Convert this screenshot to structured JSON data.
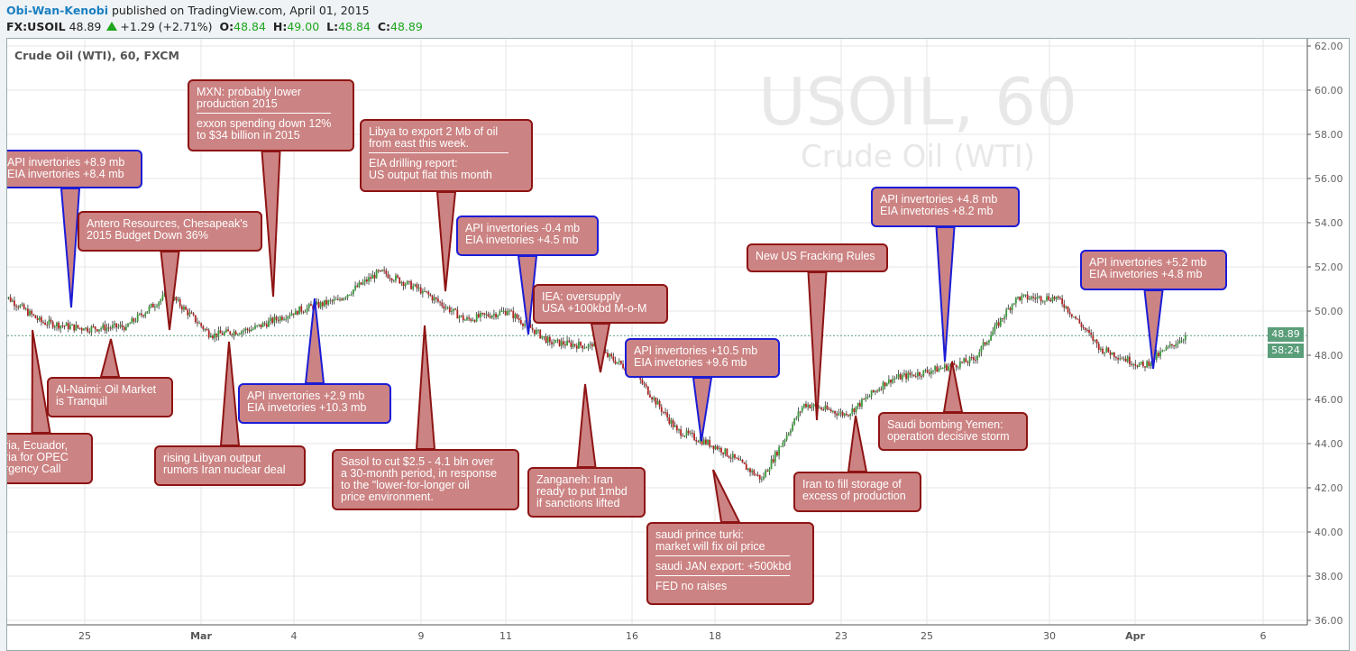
{
  "header": {
    "author": "Obi-Wan-Kenobi",
    "published": "published on TradingView.com, April 01, 2015",
    "symbol": "FX:USOIL",
    "last": "48.89",
    "change": "+1.29 (+2.71%)",
    "o_label": "O:",
    "o": "48.84",
    "h_label": "H:",
    "h": "49.00",
    "l_label": "L:",
    "l": "48.84",
    "c_label": "C:",
    "c": "48.89"
  },
  "chart_data": {
    "type": "candlestick",
    "title": "Crude Oil (WTI), 60, FXCM",
    "watermark": {
      "symbol": "USOIL, 60",
      "name": "Crude Oil (WTI)"
    },
    "ylim": [
      36,
      62
    ],
    "yticks": [
      "36.00",
      "38.00",
      "40.00",
      "42.00",
      "44.00",
      "46.00",
      "48.00",
      "50.00",
      "52.00",
      "54.00",
      "56.00",
      "58.00",
      "60.00",
      "62.00"
    ],
    "xticks": [
      "25",
      "Mar",
      "4",
      "9",
      "11",
      "16",
      "18",
      "23",
      "25",
      "30",
      "Apr",
      "6"
    ],
    "trading_days": [
      "2015-02-23",
      "2015-02-24",
      "2015-02-25",
      "2015-02-26",
      "2015-02-27",
      "2015-03-02",
      "2015-03-03",
      "2015-03-04",
      "2015-03-05",
      "2015-03-06",
      "2015-03-09",
      "2015-03-10",
      "2015-03-11",
      "2015-03-12",
      "2015-03-13",
      "2015-03-16",
      "2015-03-17",
      "2015-03-18",
      "2015-03-19",
      "2015-03-20",
      "2015-03-23",
      "2015-03-24",
      "2015-03-25",
      "2015-03-26",
      "2015-03-27",
      "2015-03-30",
      "2015-03-31",
      "2015-04-01"
    ],
    "daily_close": [
      49.5,
      49.2,
      49.3,
      50.8,
      48.9,
      49.2,
      50.0,
      50.5,
      51.8,
      50.9,
      49.6,
      50.0,
      48.6,
      48.4,
      47.2,
      44.6,
      43.8,
      42.4,
      45.8,
      45.3,
      46.9,
      47.3,
      47.8,
      50.6,
      50.6,
      48.3,
      47.5,
      48.89
    ],
    "open_first": 50.9,
    "last_price": "48.89",
    "countdown": "58:24",
    "colors": {
      "up": "#3a9a3a",
      "down": "#b22222",
      "last_price_tag": "#5a9e7a"
    }
  },
  "callouts": [
    {
      "text": "API invertories +8.9 mb\nEIA invertories +8.4 mb",
      "color": "blue"
    },
    {
      "text": "MXN: probably lower\nproduction 2015",
      "text2": "exxon spending down 12%\nto $34 billion in 2015",
      "color": "red"
    },
    {
      "text": "Antero Resources, Chesapeak's\n2015 Budget Down 36%",
      "color": "red"
    },
    {
      "text": "Libya to export 2 Mb of oil\nfrom east this week.",
      "text2": "EIA drilling report:\nUS output flat this month",
      "color": "red"
    },
    {
      "text": "API invertories -0.4 mb\nEIA invetories +4.5 mb",
      "color": "blue"
    },
    {
      "text": "IEA: oversupply\nUSA +100kbd M-o-M",
      "color": "red"
    },
    {
      "text": "New US Fracking Rules",
      "color": "red"
    },
    {
      "text": "API invertories +4.8 mb\nEIA invetories +8.2 mb",
      "color": "blue"
    },
    {
      "text": "API invertories +5.2 mb\nEIA invetories +4.8 mb",
      "color": "blue"
    },
    {
      "text": "Al-Naimi: Oil Market\nis Tranquil",
      "color": "red"
    },
    {
      "text": "eria, Ecuador,\neria for OPEC\nergency Call",
      "color": "red"
    },
    {
      "text": "rising Libyan output\nrumors Iran nuclear deal",
      "color": "red"
    },
    {
      "text": "API invertories +2.9 mb\nEIA invetories +10.3 mb",
      "color": "blue"
    },
    {
      "text": "Sasol to cut $2.5 - 4.1 bln over\na 30-month period, in response\nto the \"lower-for-longer oil\nprice environment.",
      "color": "red"
    },
    {
      "text": "Zanganeh: Iran\nready to put 1mbd\nif sanctions lifted",
      "color": "red"
    },
    {
      "text": "API invertories +10.5 mb\nEIA invetories +9.6 mb",
      "color": "blue"
    },
    {
      "text": "saudi prince turki:\nmarket will fix oil price",
      "text2": "saudi JAN export: +500kbd",
      "text3": "FED no raises",
      "color": "red"
    },
    {
      "text": "Iran to fill storage of\nexcess of production",
      "color": "red"
    },
    {
      "text": "Saudi bombing Yemen:\noperation decisive storm",
      "color": "red"
    }
  ]
}
